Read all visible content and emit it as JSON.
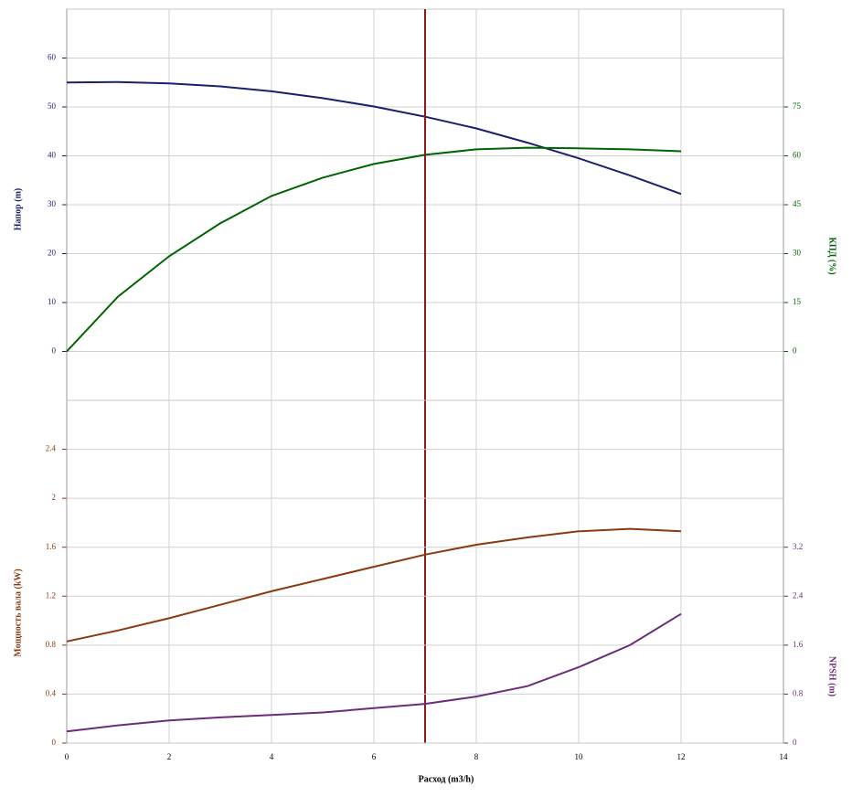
{
  "chart_data": [
    {
      "type": "line",
      "x": [
        0,
        1,
        2,
        3,
        4,
        5,
        6,
        7,
        8,
        9,
        10,
        11,
        12
      ],
      "xlim": [
        0,
        14
      ],
      "xticks": [
        0,
        2,
        4,
        6,
        8,
        10,
        12,
        14
      ],
      "ylabel": "Напор (m)",
      "ylim": [
        -10,
        70
      ],
      "yticks": [
        0,
        10,
        20,
        30,
        40,
        50,
        60
      ],
      "y2label": "КПД (%)",
      "y2lim": [
        -15,
        105
      ],
      "y2ticks": [
        0,
        15,
        30,
        45,
        60,
        75
      ],
      "grid": true,
      "marker_x": 7,
      "marker_color": "#8b1a1a",
      "series": [
        {
          "name": "Напор",
          "color": "#1a1f6e",
          "axis": "y",
          "values": [
            55,
            55.1,
            54.8,
            54.2,
            53.2,
            51.8,
            50.1,
            48,
            45.6,
            42.7,
            39.5,
            36,
            32.2
          ]
        },
        {
          "name": "КПД",
          "color": "#006400",
          "axis": "y2",
          "values": [
            0,
            16.8,
            29.2,
            39.3,
            47.7,
            53.3,
            57.5,
            60.3,
            62,
            62.5,
            62.3,
            62,
            61.4
          ]
        }
      ]
    },
    {
      "type": "line",
      "x": [
        0,
        1,
        2,
        3,
        4,
        5,
        6,
        7,
        8,
        9,
        10,
        11,
        12
      ],
      "xlabel": "Расход (m3/h)",
      "xlim": [
        0,
        14
      ],
      "xticks": [
        0,
        2,
        4,
        6,
        8,
        10,
        12,
        14
      ],
      "ylabel": "Мощность вала (kW)",
      "ylim": [
        0,
        2.8
      ],
      "yticks": [
        0,
        0.4,
        0.8,
        1.2,
        1.6,
        2,
        2.4
      ],
      "y2label": "NPSH (m)",
      "y2lim": [
        0,
        5.6
      ],
      "y2ticks": [
        0,
        0.8,
        1.6,
        2.4,
        3.2
      ],
      "grid": true,
      "series": [
        {
          "name": "Мощность вала",
          "color": "#8b3a0f",
          "axis": "y",
          "values": [
            0.83,
            0.92,
            1.02,
            1.13,
            1.24,
            1.34,
            1.44,
            1.54,
            1.62,
            1.68,
            1.73,
            1.75,
            1.73
          ]
        },
        {
          "name": "NPSH",
          "color": "#6b2d7a",
          "axis": "y2",
          "values": [
            0.19,
            0.29,
            0.37,
            0.42,
            0.46,
            0.5,
            0.57,
            0.64,
            0.76,
            0.93,
            1.24,
            1.6,
            2.11
          ]
        }
      ]
    }
  ]
}
